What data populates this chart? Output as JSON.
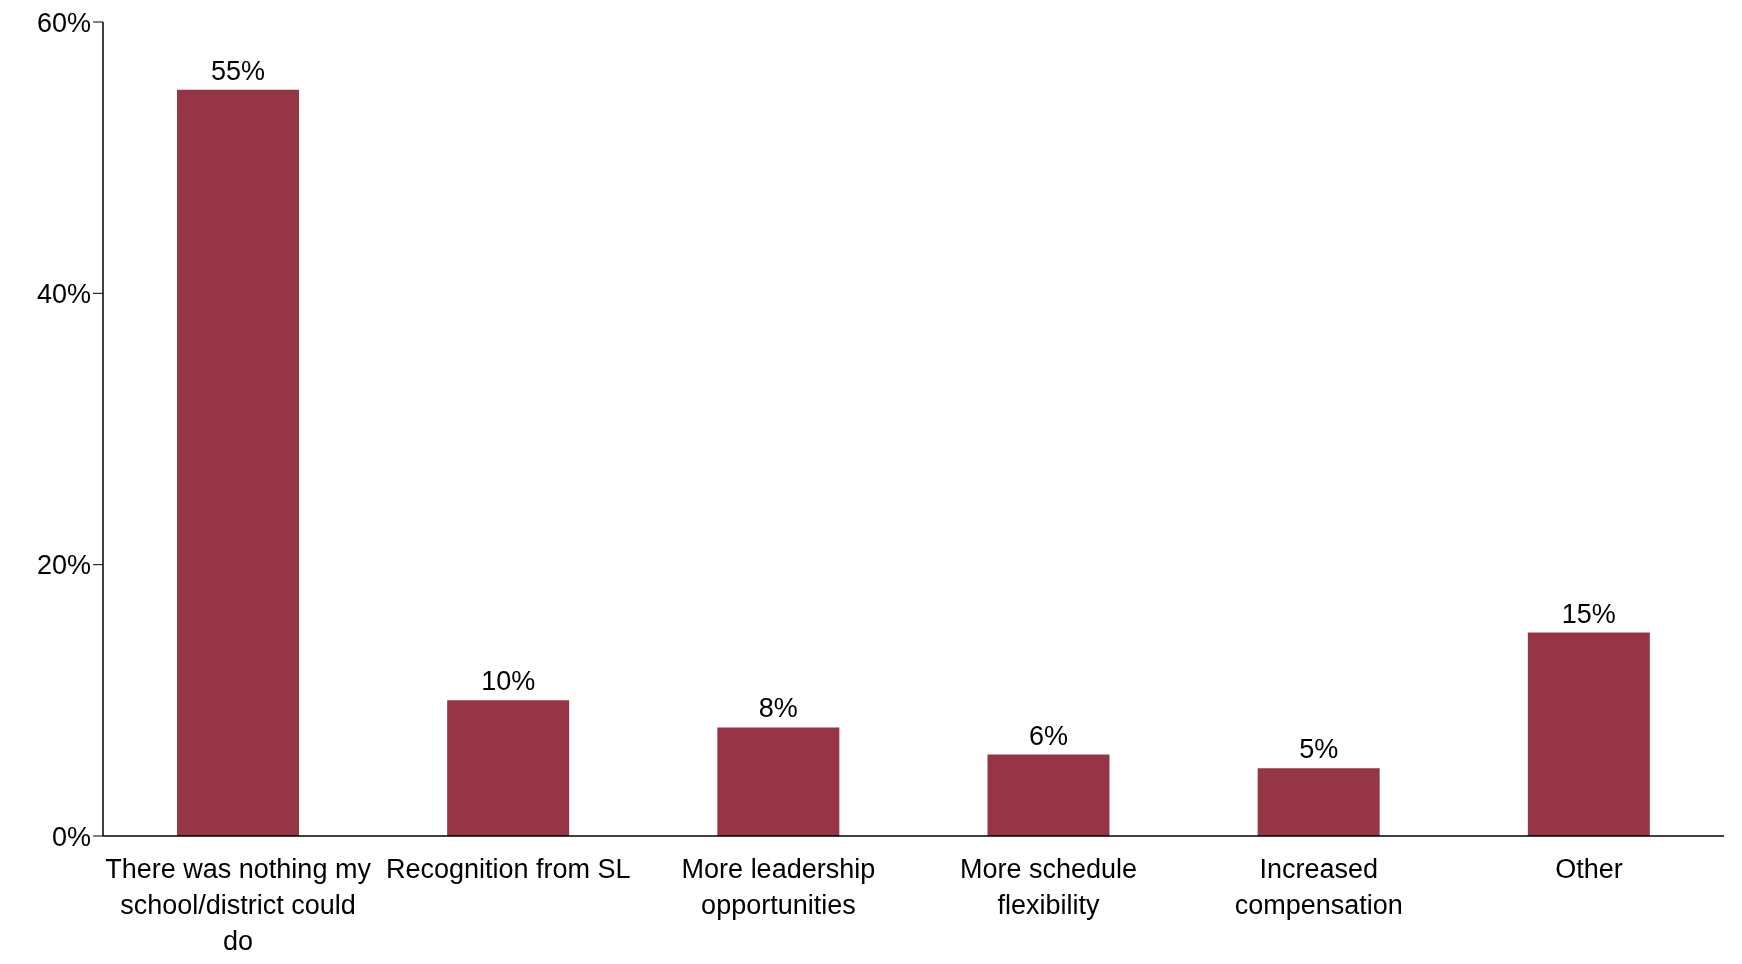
{
  "chart_data": {
    "type": "bar",
    "categories": [
      "There was nothing my school/district could do",
      "Recognition from SL",
      "More leadership opportunities",
      "More schedule flexibility",
      "Increased compensation",
      "Other"
    ],
    "values": [
      55,
      10,
      8,
      6,
      5,
      15
    ],
    "value_labels": [
      "55%",
      "10%",
      "8%",
      "6%",
      "5%",
      "15%"
    ],
    "color": "#953545",
    "ylim": [
      0,
      60
    ],
    "yticks": [
      {
        "value": 0,
        "label": "0%"
      },
      {
        "value": 20,
        "label": "20%"
      },
      {
        "value": 40,
        "label": "40%"
      },
      {
        "value": 60,
        "label": "60%"
      }
    ],
    "grid": false,
    "legend": false
  }
}
